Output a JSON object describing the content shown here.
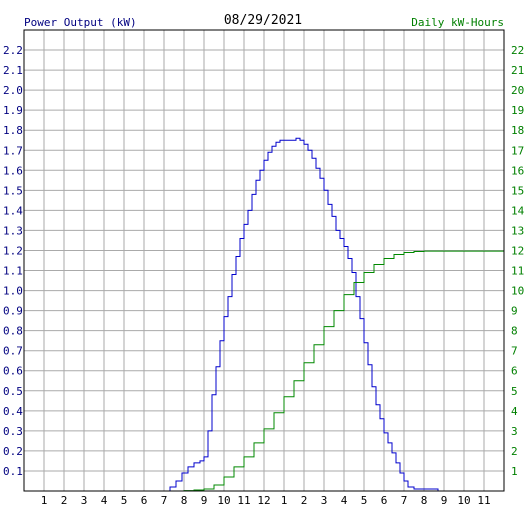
{
  "chart_data": {
    "type": "line",
    "title": "08/29/2021",
    "left_axis_label": "Power Output (kW)",
    "right_axis_label": "Daily kW-Hours",
    "x_ticks": [
      "1",
      "2",
      "3",
      "4",
      "5",
      "6",
      "7",
      "8",
      "9",
      "10",
      "11",
      "12",
      "1",
      "2",
      "3",
      "4",
      "5",
      "6",
      "7",
      "8",
      "9",
      "10",
      "11"
    ],
    "left_ticks": [
      "0.1",
      "0.2",
      "0.3",
      "0.4",
      "0.5",
      "0.6",
      "0.7",
      "0.8",
      "0.9",
      "1.0",
      "1.1",
      "1.2",
      "1.3",
      "1.4",
      "1.5",
      "1.6",
      "1.7",
      "1.8",
      "1.9",
      "2.0",
      "2.1",
      "2.2"
    ],
    "right_ticks": [
      "1",
      "2",
      "3",
      "4",
      "5",
      "6",
      "7",
      "8",
      "9",
      "10",
      "11",
      "12",
      "13",
      "14",
      "15",
      "16",
      "17",
      "18",
      "19",
      "20",
      "21",
      "22"
    ],
    "left_ylim": [
      0,
      2.3
    ],
    "right_ylim": [
      0,
      23
    ],
    "xlim": [
      0,
      24
    ],
    "grid": true,
    "colors": {
      "power": "#0000cc",
      "energy": "#008800",
      "grid": "#aaaaaa",
      "frame": "#000000",
      "left_text": "#000080",
      "right_text": "#008000",
      "title_text": "#000000"
    },
    "series": [
      {
        "id": "power",
        "axis": "left",
        "x": [
          7.0,
          7.3,
          7.6,
          7.9,
          8.2,
          8.5,
          8.8,
          9.0,
          9.2,
          9.4,
          9.6,
          9.8,
          10.0,
          10.2,
          10.4,
          10.6,
          10.8,
          11.0,
          11.2,
          11.4,
          11.6,
          11.8,
          12.0,
          12.2,
          12.4,
          12.6,
          12.8,
          13.0,
          13.2,
          13.4,
          13.6,
          13.8,
          14.0,
          14.2,
          14.4,
          14.6,
          14.8,
          15.0,
          15.2,
          15.4,
          15.6,
          15.8,
          16.0,
          16.2,
          16.4,
          16.6,
          16.8,
          17.0,
          17.2,
          17.4,
          17.6,
          17.8,
          18.0,
          18.2,
          18.4,
          18.6,
          18.8,
          19.0,
          19.2,
          19.5,
          19.8,
          20.1,
          20.4,
          20.7,
          21.0
        ],
        "y": [
          0.0,
          0.02,
          0.05,
          0.09,
          0.12,
          0.14,
          0.15,
          0.17,
          0.3,
          0.48,
          0.62,
          0.75,
          0.87,
          0.97,
          1.08,
          1.17,
          1.26,
          1.33,
          1.4,
          1.48,
          1.55,
          1.6,
          1.65,
          1.69,
          1.72,
          1.74,
          1.75,
          1.75,
          1.75,
          1.75,
          1.76,
          1.75,
          1.73,
          1.7,
          1.66,
          1.61,
          1.56,
          1.5,
          1.43,
          1.37,
          1.3,
          1.26,
          1.22,
          1.16,
          1.09,
          0.97,
          0.86,
          0.74,
          0.63,
          0.52,
          0.43,
          0.36,
          0.29,
          0.24,
          0.19,
          0.14,
          0.09,
          0.05,
          0.02,
          0.01,
          0.01,
          0.01,
          0.01,
          0.0,
          0.0
        ]
      },
      {
        "id": "energy",
        "axis": "right",
        "x": [
          7.5,
          8.0,
          8.5,
          9.0,
          9.5,
          10.0,
          10.5,
          11.0,
          11.5,
          12.0,
          12.5,
          13.0,
          13.5,
          14.0,
          14.5,
          15.0,
          15.5,
          16.0,
          16.5,
          17.0,
          17.5,
          18.0,
          18.5,
          19.0,
          19.5,
          20.0,
          20.5,
          21.0,
          21.5,
          22.0,
          22.5,
          23.0,
          23.5,
          24.0
        ],
        "y": [
          0.0,
          0.02,
          0.05,
          0.1,
          0.3,
          0.7,
          1.2,
          1.7,
          2.4,
          3.1,
          3.9,
          4.7,
          5.5,
          6.4,
          7.3,
          8.2,
          9.0,
          9.8,
          10.4,
          10.9,
          11.3,
          11.6,
          11.8,
          11.9,
          11.95,
          11.97,
          11.97,
          11.97,
          11.97,
          11.97,
          11.97,
          11.97,
          11.97,
          11.97
        ]
      }
    ]
  }
}
